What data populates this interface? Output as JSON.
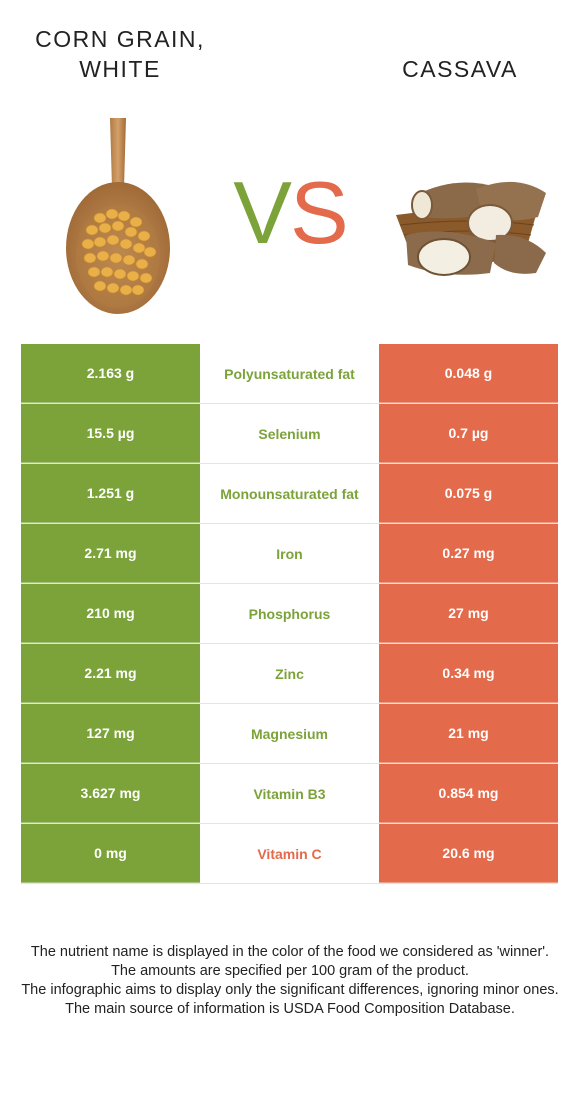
{
  "left_food": {
    "title_line1": "CORN GRAIN,",
    "title_line2": "WHITE",
    "color": "#7ba33a"
  },
  "right_food": {
    "title": "CASSAVA",
    "color": "#e36a4b"
  },
  "vs": {
    "v": "V",
    "s": "S"
  },
  "rows": [
    {
      "left": "2.163 g",
      "nutrient": "Polyunsaturated fat",
      "right": "0.048 g",
      "winner": "left"
    },
    {
      "left": "15.5 µg",
      "nutrient": "Selenium",
      "right": "0.7 µg",
      "winner": "left"
    },
    {
      "left": "1.251 g",
      "nutrient": "Monounsaturated fat",
      "right": "0.075 g",
      "winner": "left"
    },
    {
      "left": "2.71 mg",
      "nutrient": "Iron",
      "right": "0.27 mg",
      "winner": "left"
    },
    {
      "left": "210 mg",
      "nutrient": "Phosphorus",
      "right": "27 mg",
      "winner": "left"
    },
    {
      "left": "2.21 mg",
      "nutrient": "Zinc",
      "right": "0.34 mg",
      "winner": "left"
    },
    {
      "left": "127 mg",
      "nutrient": "Magnesium",
      "right": "21 mg",
      "winner": "left"
    },
    {
      "left": "3.627 mg",
      "nutrient": "Vitamin B3",
      "right": "0.854 mg",
      "winner": "left"
    },
    {
      "left": "0 mg",
      "nutrient": "Vitamin C",
      "right": "20.6 mg",
      "winner": "right"
    }
  ],
  "footer": {
    "line1": "The nutrient name is displayed in the color of the food we considered as 'winner'.",
    "line2": "The amounts are specified per 100 gram of the product.",
    "line3": "The infographic aims to display only the significant differences, ignoring minor ones.",
    "line4": "The main source of information is USDA Food Composition Database."
  }
}
